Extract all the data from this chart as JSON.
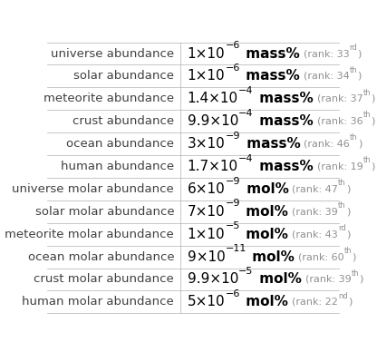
{
  "rows": [
    {
      "label": "universe abundance",
      "coeff": "1",
      "exp": "−6",
      "unit": "mass%",
      "rank": "33",
      "rank_suffix": "rd"
    },
    {
      "label": "solar abundance",
      "coeff": "1",
      "exp": "−6",
      "unit": "mass%",
      "rank": "34",
      "rank_suffix": "th"
    },
    {
      "label": "meteorite abundance",
      "coeff": "1.4",
      "exp": "−4",
      "unit": "mass%",
      "rank": "37",
      "rank_suffix": "th"
    },
    {
      "label": "crust abundance",
      "coeff": "9.9",
      "exp": "−4",
      "unit": "mass%",
      "rank": "36",
      "rank_suffix": "th"
    },
    {
      "label": "ocean abundance",
      "coeff": "3",
      "exp": "−9",
      "unit": "mass%",
      "rank": "46",
      "rank_suffix": "th"
    },
    {
      "label": "human abundance",
      "coeff": "1.7",
      "exp": "−4",
      "unit": "mass%",
      "rank": "19",
      "rank_suffix": "th"
    },
    {
      "label": "universe molar abundance",
      "coeff": "6",
      "exp": "−9",
      "unit": "mol%",
      "rank": "47",
      "rank_suffix": "th"
    },
    {
      "label": "solar molar abundance",
      "coeff": "7",
      "exp": "−9",
      "unit": "mol%",
      "rank": "39",
      "rank_suffix": "th"
    },
    {
      "label": "meteorite molar abundance",
      "coeff": "1",
      "exp": "−5",
      "unit": "mol%",
      "rank": "43",
      "rank_suffix": "rd"
    },
    {
      "label": "ocean molar abundance",
      "coeff": "9",
      "exp": "−11",
      "unit": "mol%",
      "rank": "60",
      "rank_suffix": "th"
    },
    {
      "label": "crust molar abundance",
      "coeff": "9.9",
      "exp": "−5",
      "unit": "mol%",
      "rank": "39",
      "rank_suffix": "th"
    },
    {
      "label": "human molar abundance",
      "coeff": "5",
      "exp": "−6",
      "unit": "mol%",
      "rank": "22",
      "rank_suffix": "nd"
    }
  ],
  "bg_color": "#ffffff",
  "border_color": "#b0b0b0",
  "label_fontsize": 9.5,
  "value_fontsize": 11,
  "sup_fontsize": 8,
  "rank_fontsize": 8,
  "rank_sup_fontsize": 6,
  "label_font_color": "#404040",
  "value_font_color": "#000000",
  "rank_font_color": "#909090",
  "col_split": 0.455
}
